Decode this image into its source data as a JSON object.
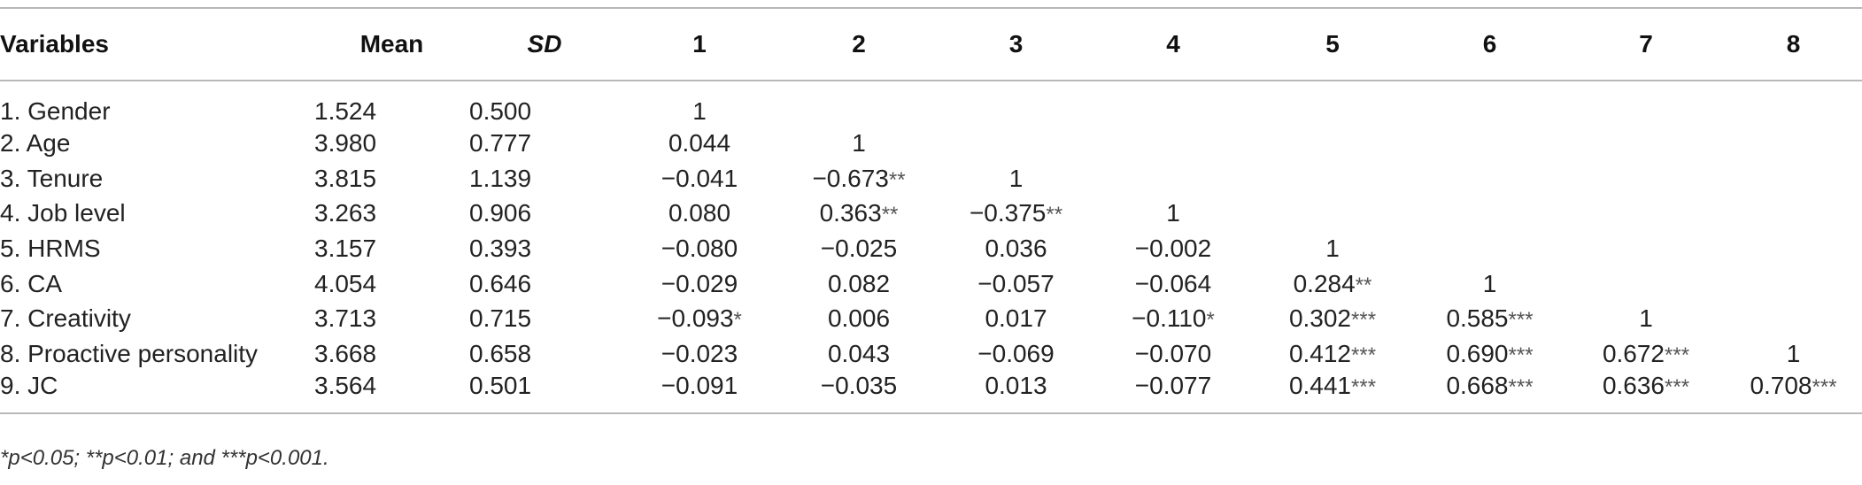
{
  "table": {
    "headers": [
      "Variables",
      "Mean",
      "SD",
      "1",
      "2",
      "3",
      "4",
      "5",
      "6",
      "7",
      "8"
    ],
    "rows": [
      {
        "variable": "1. Gender",
        "mean": "1.524",
        "sd": "0.500",
        "c": [
          "1",
          "",
          "",
          "",
          "",
          "",
          "",
          ""
        ],
        "stars": [
          "",
          "",
          "",
          "",
          "",
          "",
          "",
          ""
        ]
      },
      {
        "variable": "2. Age",
        "mean": "3.980",
        "sd": "0.777",
        "c": [
          "0.044",
          "1",
          "",
          "",
          "",
          "",
          "",
          ""
        ],
        "stars": [
          "",
          "",
          "",
          "",
          "",
          "",
          "",
          ""
        ]
      },
      {
        "variable": "3. Tenure",
        "mean": "3.815",
        "sd": "1.139",
        "c": [
          "−0.041",
          "−0.673",
          "1",
          "",
          "",
          "",
          "",
          ""
        ],
        "stars": [
          "",
          "**",
          "",
          "",
          "",
          "",
          "",
          ""
        ]
      },
      {
        "variable": "4. Job level",
        "mean": "3.263",
        "sd": "0.906",
        "c": [
          "0.080",
          "0.363",
          "−0.375",
          "1",
          "",
          "",
          "",
          ""
        ],
        "stars": [
          "",
          "**",
          "**",
          "",
          "",
          "",
          "",
          ""
        ]
      },
      {
        "variable": "5. HRMS",
        "mean": "3.157",
        "sd": "0.393",
        "c": [
          "−0.080",
          "−0.025",
          "0.036",
          "−0.002",
          "1",
          "",
          "",
          ""
        ],
        "stars": [
          "",
          "",
          "",
          "",
          "",
          "",
          "",
          ""
        ]
      },
      {
        "variable": "6. CA",
        "mean": "4.054",
        "sd": "0.646",
        "c": [
          "−0.029",
          "0.082",
          "−0.057",
          "−0.064",
          "0.284",
          "1",
          "",
          ""
        ],
        "stars": [
          "",
          "",
          "",
          "",
          "**",
          "",
          "",
          ""
        ]
      },
      {
        "variable": "7. Creativity",
        "mean": "3.713",
        "sd": "0.715",
        "c": [
          "−0.093",
          "0.006",
          "0.017",
          "−0.110",
          "0.302",
          "0.585",
          "1",
          ""
        ],
        "stars": [
          "*",
          "",
          "",
          "*",
          "***",
          "***",
          "",
          ""
        ]
      },
      {
        "variable": "8. Proactive personality",
        "mean": "3.668",
        "sd": "0.658",
        "c": [
          "−0.023",
          "0.043",
          "−0.069",
          "−0.070",
          "0.412",
          "0.690",
          "0.672",
          "1"
        ],
        "stars": [
          "",
          "",
          "",
          "",
          "***",
          "***",
          "***",
          ""
        ]
      },
      {
        "variable": "9. JC",
        "mean": "3.564",
        "sd": "0.501",
        "c": [
          "−0.091",
          "−0.035",
          "0.013",
          "−0.077",
          "0.441",
          "0.668",
          "0.636",
          "0.708"
        ],
        "stars": [
          "",
          "",
          "",
          "",
          "***",
          "***",
          "***",
          "***"
        ]
      }
    ]
  },
  "note": "*p<0.05; **p<0.01; and ***p<0.001."
}
